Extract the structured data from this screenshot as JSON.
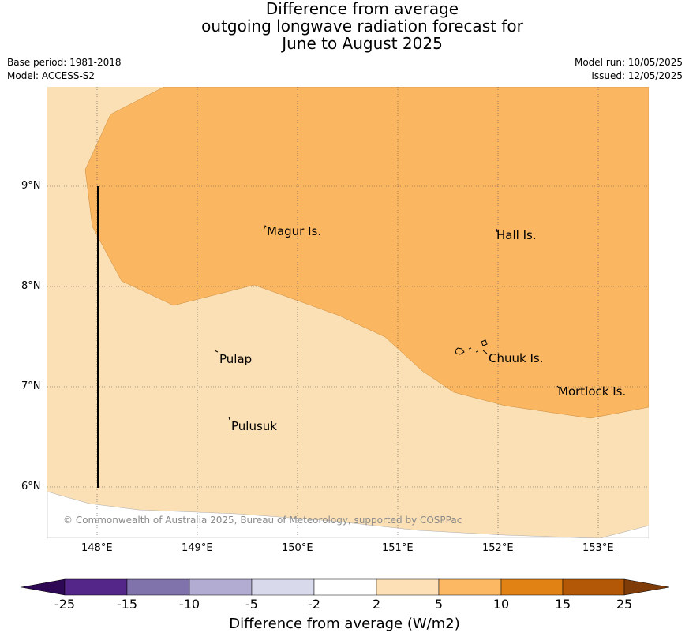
{
  "title": {
    "line1": "Difference from average",
    "line2": "outgoing longwave radiation forecast for",
    "line3": "June to August 2025"
  },
  "meta": {
    "base_period": "Base period: 1981-2018",
    "model": "Model: ACCESS-S2",
    "model_run": "Model run: 10/05/2025",
    "issued": "Issued: 12/05/2025"
  },
  "map": {
    "lon_ticks": [
      "148°E",
      "149°E",
      "150°E",
      "151°E",
      "152°E",
      "153°E"
    ],
    "lat_ticks": [
      "9°N",
      "8°N",
      "7°N",
      "6°N"
    ],
    "labels": {
      "magur": "Magur Is.",
      "hall": "Hall Is.",
      "pulap": "Pulap",
      "chuuk": "Chuuk Is.",
      "mortlock": "Mortlock Is.",
      "pulusuk": "Pulusuk"
    },
    "copyright": "© Commonwealth of Australia 2025, Bureau of Meteorology, supported by COSPPac",
    "fill_colors": {
      "range_2_to_5": "#fce0b5",
      "range_5_to_10": "#fbb661"
    }
  },
  "colorbar": {
    "title": "Difference from average (W/m2)",
    "tick_labels": [
      "-25",
      "-15",
      "-10",
      "-5",
      "-2",
      "2",
      "5",
      "10",
      "15",
      "25"
    ],
    "colors": {
      "below_min": "#2e0854",
      "c1": "#542689",
      "c2": "#8073ac",
      "c3": "#b2abd2",
      "c4": "#d8daeb",
      "c5": "#ffffff",
      "c6": "#fee0b6",
      "c7": "#fdb863",
      "c8": "#e08214",
      "c9": "#b35806",
      "above_max": "#7f3b08"
    }
  }
}
